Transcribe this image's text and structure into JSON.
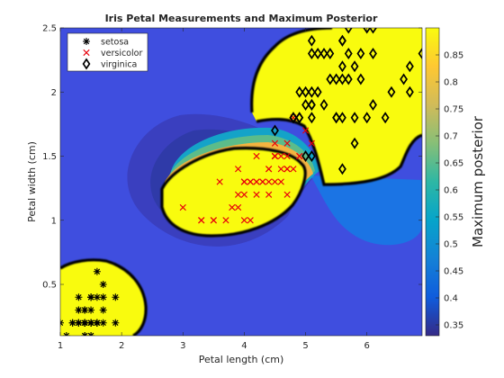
{
  "chart_data": {
    "type": "scatter",
    "title": "Iris Petal Measurements and Maximum Posterior",
    "xlabel": "Petal length (cm)",
    "ylabel": "Petal width (cm)",
    "xlim": [
      1,
      6.9
    ],
    "ylim": [
      0.1,
      2.5
    ],
    "xticks": [
      1,
      2,
      3,
      4,
      5,
      6
    ],
    "yticks": [
      0.5,
      1,
      1.5,
      2,
      2.5
    ],
    "grid": false,
    "legend_position": "top-left",
    "colorbar": {
      "label": "Maximum posterior",
      "range": [
        0.33,
        0.9
      ],
      "ticks": [
        0.35,
        0.4,
        0.45,
        0.5,
        0.55,
        0.6,
        0.65,
        0.7,
        0.75,
        0.8,
        0.85
      ],
      "tick_labels": [
        "0.35",
        "0.4",
        "0.45",
        "0.5",
        "0.55",
        "0.6",
        "0.65",
        "0.7",
        "0.75",
        "0.8",
        "0.85"
      ],
      "colormap": "parula",
      "colors": [
        "#352a87",
        "#0f5cdd",
        "#1481d6",
        "#06a4ca",
        "#2eb7a4",
        "#87bf77",
        "#d1bb59",
        "#fec832",
        "#f9fb0e"
      ]
    },
    "series": [
      {
        "name": "setosa",
        "marker": "asterisk",
        "color": "#000000",
        "points": [
          [
            1.4,
            0.2
          ],
          [
            1.4,
            0.2
          ],
          [
            1.3,
            0.2
          ],
          [
            1.5,
            0.2
          ],
          [
            1.4,
            0.2
          ],
          [
            1.7,
            0.4
          ],
          [
            1.4,
            0.3
          ],
          [
            1.5,
            0.2
          ],
          [
            1.4,
            0.2
          ],
          [
            1.5,
            0.1
          ],
          [
            1.5,
            0.2
          ],
          [
            1.6,
            0.2
          ],
          [
            1.4,
            0.1
          ],
          [
            1.1,
            0.1
          ],
          [
            1.2,
            0.2
          ],
          [
            1.5,
            0.4
          ],
          [
            1.3,
            0.4
          ],
          [
            1.4,
            0.3
          ],
          [
            1.7,
            0.3
          ],
          [
            1.5,
            0.3
          ],
          [
            1.7,
            0.2
          ],
          [
            1.5,
            0.4
          ],
          [
            1.0,
            0.2
          ],
          [
            1.7,
            0.5
          ],
          [
            1.9,
            0.2
          ],
          [
            1.6,
            0.2
          ],
          [
            1.6,
            0.4
          ],
          [
            1.5,
            0.2
          ],
          [
            1.4,
            0.2
          ],
          [
            1.6,
            0.2
          ],
          [
            1.6,
            0.2
          ],
          [
            1.5,
            0.4
          ],
          [
            1.5,
            0.1
          ],
          [
            1.4,
            0.2
          ],
          [
            1.5,
            0.2
          ],
          [
            1.2,
            0.2
          ],
          [
            1.3,
            0.2
          ],
          [
            1.4,
            0.1
          ],
          [
            1.3,
            0.2
          ],
          [
            1.5,
            0.2
          ],
          [
            1.3,
            0.3
          ],
          [
            1.3,
            0.3
          ],
          [
            1.3,
            0.2
          ],
          [
            1.6,
            0.6
          ],
          [
            1.9,
            0.4
          ],
          [
            1.4,
            0.3
          ],
          [
            1.6,
            0.2
          ],
          [
            1.4,
            0.2
          ],
          [
            1.5,
            0.2
          ],
          [
            1.4,
            0.2
          ]
        ]
      },
      {
        "name": "versicolor",
        "marker": "x",
        "color": "#e8000b",
        "points": [
          [
            4.7,
            1.4
          ],
          [
            4.5,
            1.5
          ],
          [
            4.9,
            1.5
          ],
          [
            4.0,
            1.3
          ],
          [
            4.6,
            1.5
          ],
          [
            4.5,
            1.3
          ],
          [
            4.7,
            1.6
          ],
          [
            3.3,
            1.0
          ],
          [
            4.6,
            1.3
          ],
          [
            3.9,
            1.4
          ],
          [
            3.5,
            1.0
          ],
          [
            4.2,
            1.5
          ],
          [
            4.0,
            1.0
          ],
          [
            4.7,
            1.4
          ],
          [
            3.6,
            1.3
          ],
          [
            4.4,
            1.4
          ],
          [
            4.5,
            1.5
          ],
          [
            4.1,
            1.0
          ],
          [
            4.5,
            1.5
          ],
          [
            3.9,
            1.1
          ],
          [
            4.8,
            1.8
          ],
          [
            4.0,
            1.3
          ],
          [
            4.9,
            1.5
          ],
          [
            4.7,
            1.2
          ],
          [
            4.3,
            1.3
          ],
          [
            4.4,
            1.4
          ],
          [
            4.8,
            1.4
          ],
          [
            5.0,
            1.7
          ],
          [
            4.5,
            1.5
          ],
          [
            3.5,
            1.0
          ],
          [
            3.8,
            1.1
          ],
          [
            3.7,
            1.0
          ],
          [
            3.9,
            1.2
          ],
          [
            5.1,
            1.6
          ],
          [
            4.5,
            1.5
          ],
          [
            4.5,
            1.6
          ],
          [
            4.7,
            1.5
          ],
          [
            4.4,
            1.3
          ],
          [
            4.1,
            1.3
          ],
          [
            4.0,
            1.3
          ],
          [
            4.4,
            1.2
          ],
          [
            4.6,
            1.4
          ],
          [
            4.0,
            1.2
          ],
          [
            3.3,
            1.0
          ],
          [
            4.2,
            1.3
          ],
          [
            4.2,
            1.2
          ],
          [
            4.2,
            1.3
          ],
          [
            4.3,
            1.3
          ],
          [
            3.0,
            1.1
          ],
          [
            4.1,
            1.3
          ]
        ]
      },
      {
        "name": "virginica",
        "marker": "diamond",
        "color": "#000000",
        "points": [
          [
            6.0,
            2.5
          ],
          [
            5.1,
            1.9
          ],
          [
            5.9,
            2.1
          ],
          [
            5.6,
            1.8
          ],
          [
            5.8,
            2.2
          ],
          [
            6.6,
            2.1
          ],
          [
            4.5,
            1.7
          ],
          [
            6.3,
            1.8
          ],
          [
            5.8,
            1.8
          ],
          [
            6.1,
            2.5
          ],
          [
            5.1,
            2.0
          ],
          [
            5.3,
            1.9
          ],
          [
            5.5,
            2.1
          ],
          [
            5.0,
            2.0
          ],
          [
            5.1,
            2.4
          ],
          [
            5.3,
            2.3
          ],
          [
            5.5,
            1.8
          ],
          [
            6.7,
            2.2
          ],
          [
            6.9,
            2.3
          ],
          [
            5.0,
            1.5
          ],
          [
            5.7,
            2.3
          ],
          [
            4.9,
            2.0
          ],
          [
            6.7,
            2.0
          ],
          [
            4.9,
            1.8
          ],
          [
            5.7,
            2.1
          ],
          [
            6.0,
            1.8
          ],
          [
            4.8,
            1.8
          ],
          [
            4.9,
            1.8
          ],
          [
            5.6,
            2.1
          ],
          [
            5.8,
            1.6
          ],
          [
            6.1,
            1.9
          ],
          [
            6.4,
            2.0
          ],
          [
            5.6,
            2.2
          ],
          [
            5.1,
            1.5
          ],
          [
            5.6,
            1.4
          ],
          [
            6.1,
            2.3
          ],
          [
            5.6,
            2.4
          ],
          [
            5.5,
            1.8
          ],
          [
            4.8,
            1.8
          ],
          [
            5.4,
            2.1
          ],
          [
            5.6,
            2.4
          ],
          [
            5.1,
            2.3
          ],
          [
            5.1,
            1.9
          ],
          [
            5.9,
            2.3
          ],
          [
            5.7,
            2.5
          ],
          [
            5.2,
            2.3
          ],
          [
            5.0,
            1.9
          ],
          [
            5.2,
            2.0
          ],
          [
            5.4,
            2.3
          ],
          [
            5.1,
            1.8
          ]
        ]
      }
    ]
  }
}
